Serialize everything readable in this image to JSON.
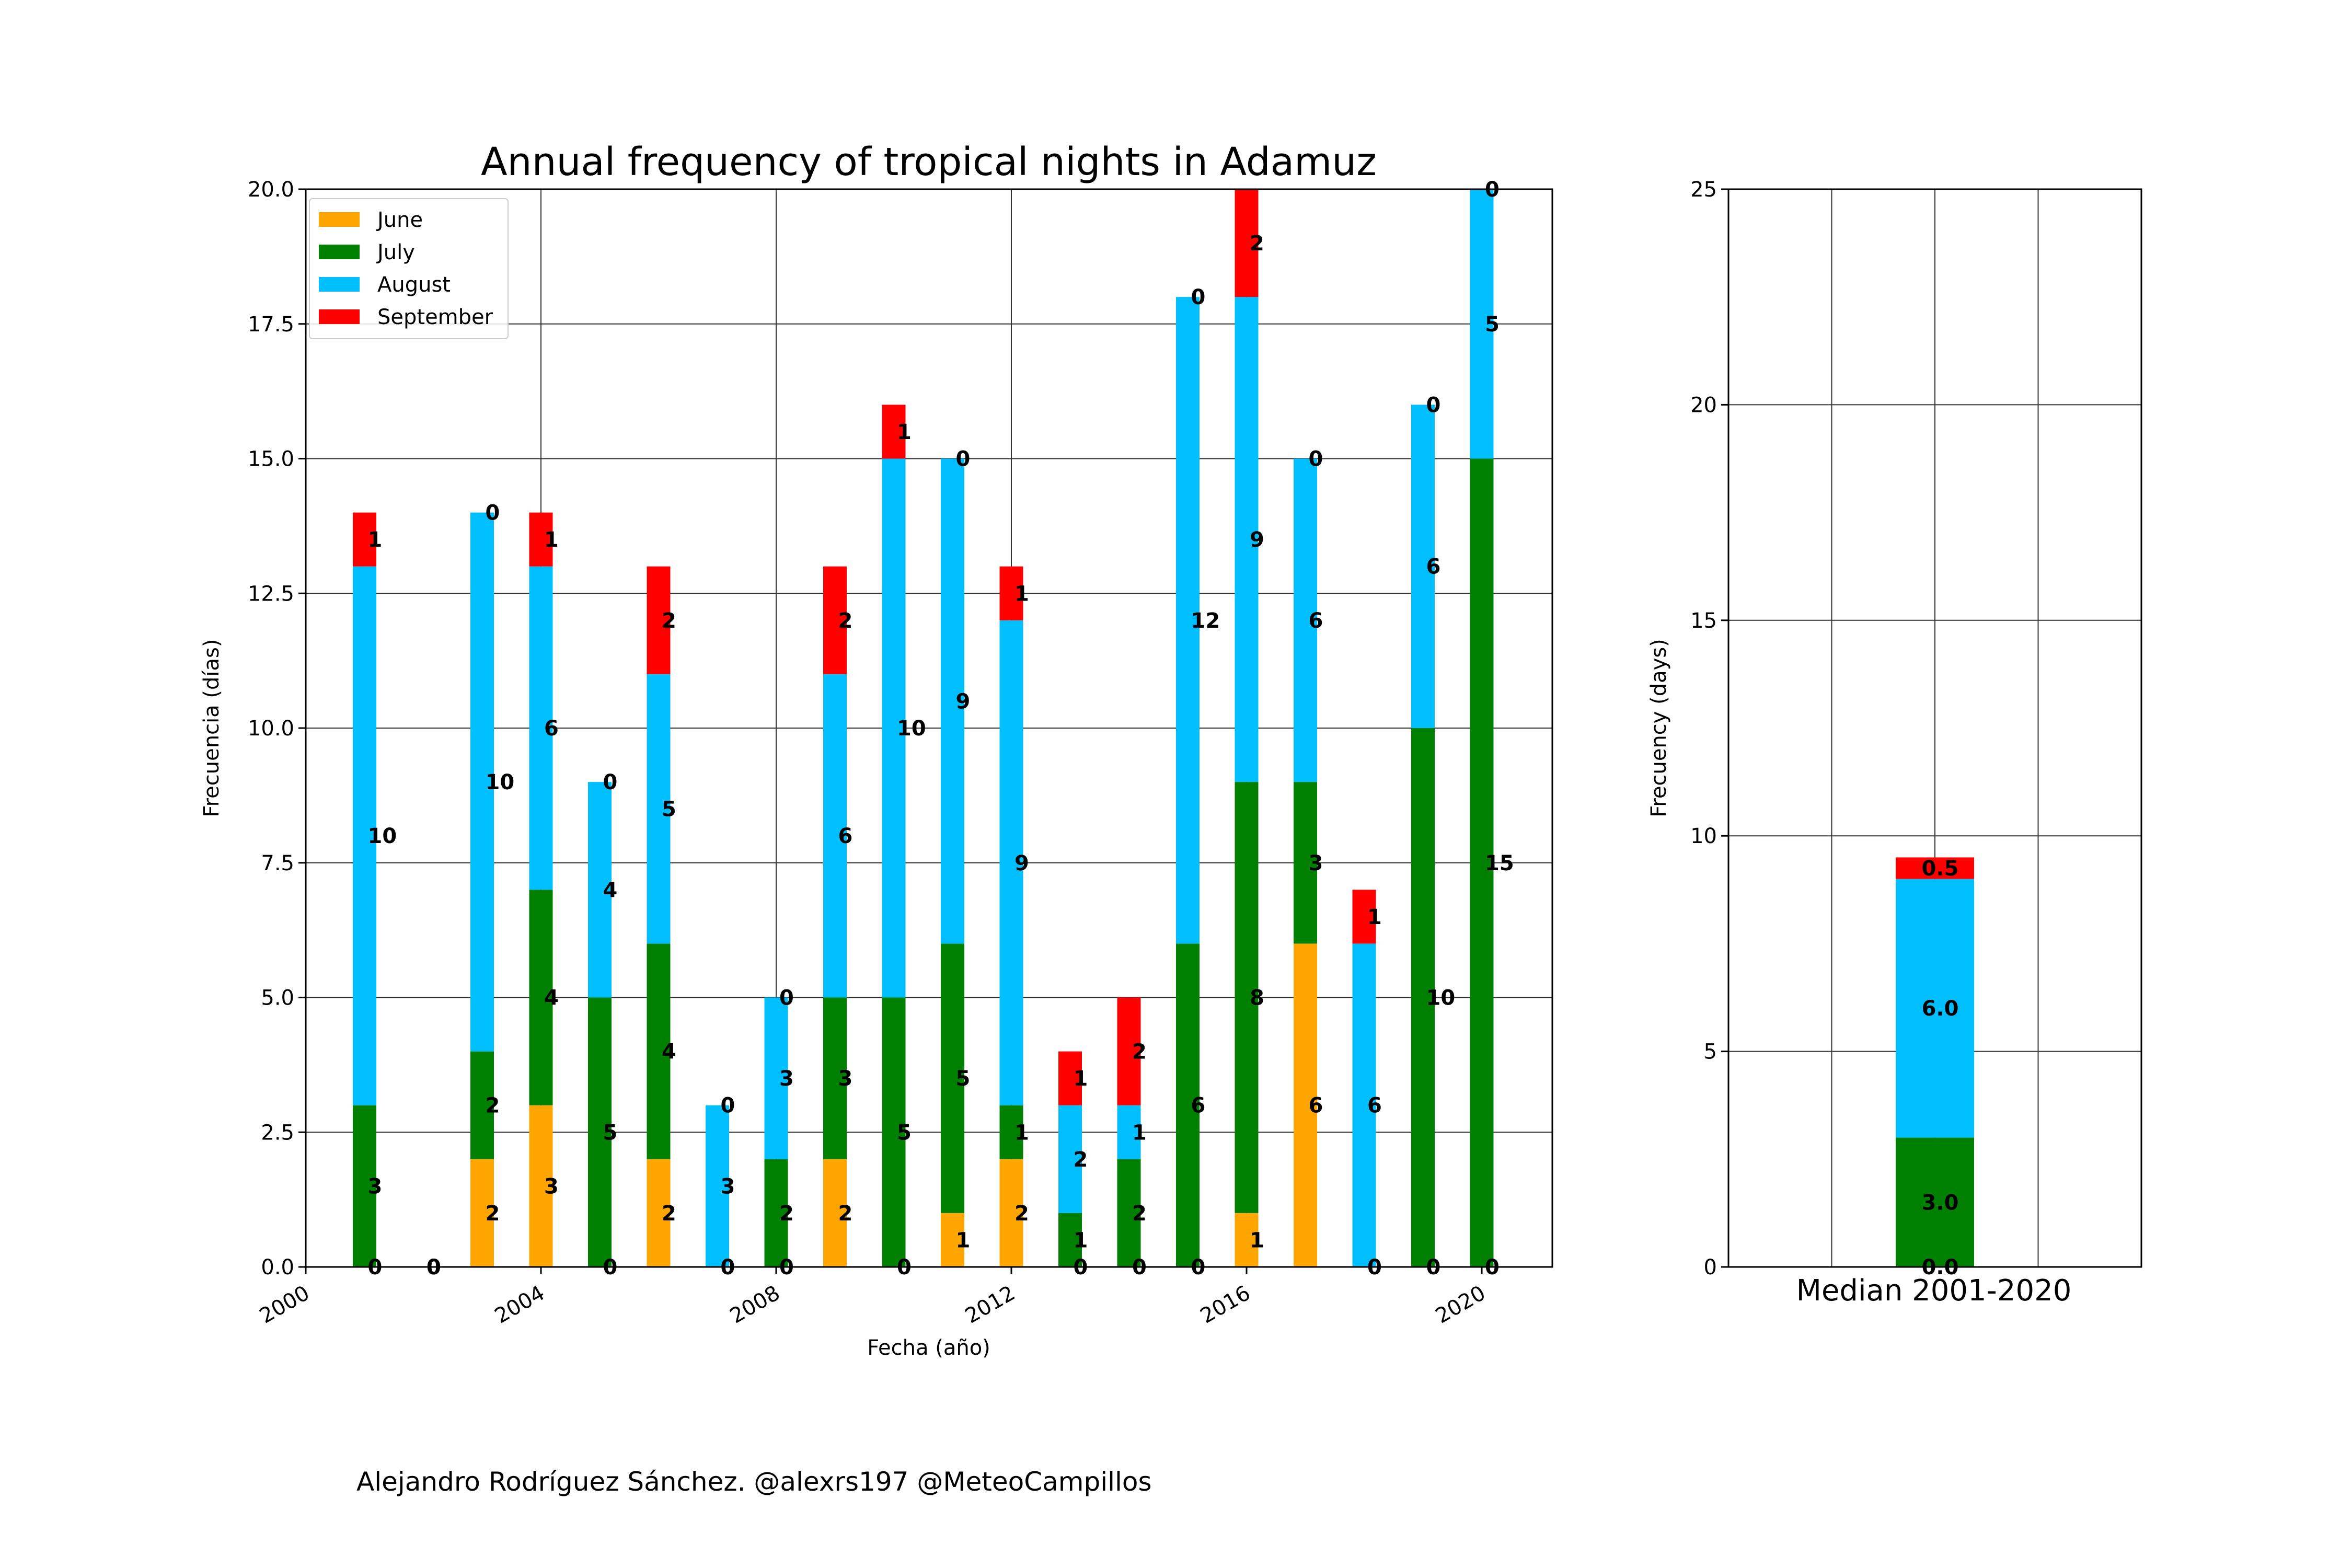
{
  "colors": {
    "June": "#ffa500",
    "July": "#008000",
    "August": "#00bfff",
    "September": "#ff0000",
    "grid": "#333333"
  },
  "footer": "Alejandro Rodríguez Sánchez. @alexrs197 @MeteoCampillos",
  "chart_data": [
    {
      "type": "bar",
      "stacked": true,
      "title": "Annual frequency of tropical nights in Adamuz",
      "xlabel": "Fecha (año)",
      "ylabel": "Frecuencia (días)",
      "ylim": [
        0,
        20
      ],
      "yticks": [
        "0.0",
        "2.5",
        "5.0",
        "7.5",
        "10.0",
        "12.5",
        "15.0",
        "17.5",
        "20.0"
      ],
      "xlim": [
        2000,
        2021.2
      ],
      "xticks": [
        "2000",
        "2004",
        "2008",
        "2012",
        "2016",
        "2020"
      ],
      "grid": true,
      "legend": "top-left",
      "x": [
        2001,
        2002,
        2003,
        2004,
        2005,
        2006,
        2007,
        2008,
        2009,
        2010,
        2011,
        2012,
        2013,
        2014,
        2015,
        2016,
        2017,
        2018,
        2019,
        2020
      ],
      "series": [
        {
          "name": "June",
          "values": [
            0,
            0,
            2,
            3,
            0,
            2,
            0,
            0,
            2,
            0,
            1,
            2,
            0,
            0,
            0,
            1,
            6,
            0,
            0,
            0
          ]
        },
        {
          "name": "July",
          "values": [
            3,
            0,
            2,
            4,
            5,
            4,
            0,
            2,
            3,
            5,
            5,
            1,
            1,
            2,
            6,
            8,
            3,
            0,
            10,
            15
          ]
        },
        {
          "name": "August",
          "values": [
            10,
            0,
            10,
            6,
            4,
            5,
            3,
            3,
            6,
            10,
            9,
            9,
            2,
            1,
            12,
            9,
            6,
            6,
            6,
            5
          ]
        },
        {
          "name": "September",
          "values": [
            1,
            0,
            0,
            1,
            0,
            2,
            0,
            0,
            2,
            1,
            0,
            1,
            1,
            2,
            0,
            2,
            0,
            1,
            0,
            0
          ]
        }
      ]
    },
    {
      "type": "bar",
      "stacked": true,
      "categories": [
        "Median 2001-2020"
      ],
      "ylabel": "Frecuency (days)",
      "ylim": [
        0,
        25
      ],
      "yticks": [
        "0",
        "5",
        "10",
        "15",
        "20",
        "25"
      ],
      "grid": true,
      "series": [
        {
          "name": "June",
          "values": [
            0.0
          ]
        },
        {
          "name": "July",
          "values": [
            3.0
          ]
        },
        {
          "name": "August",
          "values": [
            6.0
          ]
        },
        {
          "name": "September",
          "values": [
            0.5
          ]
        }
      ]
    }
  ]
}
